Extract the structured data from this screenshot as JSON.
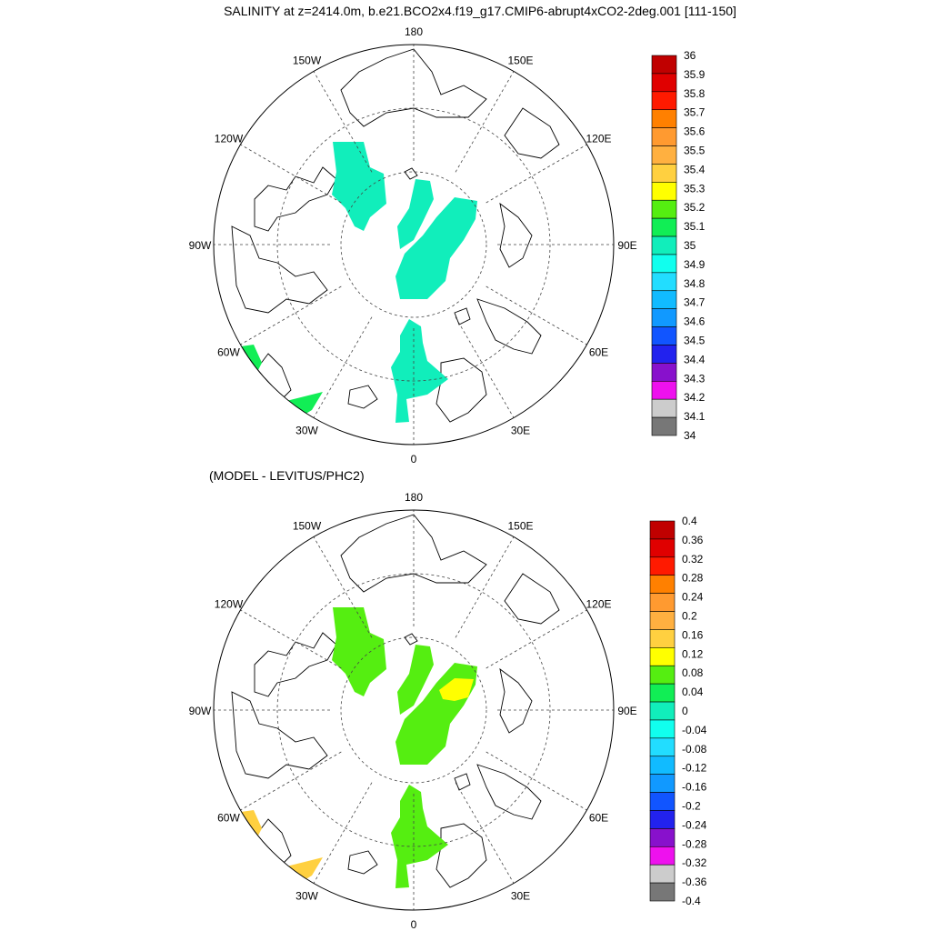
{
  "title": "SALINITY at z=2414.0m, b.e21.BCO2x4.f19_g17.CMIP6-abrupt4xCO2-2deg.001 [111-150]",
  "subtitle": "(MODEL - LEVITUS/PHC2)",
  "chart_data": [
    {
      "type": "heatmap",
      "projection": "north-polar-stereographic",
      "title": "SALINITY at z=2414.0m, b.e21.BCO2x4.f19_g17.CMIP6-abrupt4xCO2-2deg.001 [111-150]",
      "longitude_labels": [
        "180",
        "150E",
        "120E",
        "90E",
        "60E",
        "30E",
        "0",
        "30W",
        "60W",
        "90W",
        "120W",
        "150W"
      ],
      "colorbar_levels": [
        "36",
        "35.9",
        "35.8",
        "35.7",
        "35.6",
        "35.5",
        "35.4",
        "35.3",
        "35.2",
        "35.1",
        "35",
        "34.9",
        "34.8",
        "34.7",
        "34.6",
        "34.5",
        "34.4",
        "34.3",
        "34.2",
        "34.1",
        "34"
      ],
      "colorbar_colors": [
        "#c00000",
        "#e00000",
        "#ff1a00",
        "#ff8000",
        "#ff9a30",
        "#ffb040",
        "#ffd040",
        "#ffff00",
        "#55ee11",
        "#11ee55",
        "#11eebb",
        "#11ffee",
        "#22ddff",
        "#11bbff",
        "#1199ff",
        "#1155ff",
        "#2222ee",
        "#8811cc",
        "#ee11ee",
        "#cccccc",
        "#777777"
      ],
      "regions": [
        {
          "name": "canada-basin",
          "value": 34.95,
          "color": "#11eebb"
        },
        {
          "name": "makarov-basin",
          "value": 34.95,
          "color": "#11eebb"
        },
        {
          "name": "eurasian-basin",
          "value": 34.95,
          "color": "#11eebb"
        },
        {
          "name": "greenland-sea",
          "value": 34.95,
          "color": "#11eebb"
        },
        {
          "name": "labrador-sea",
          "value": 35.15,
          "color": "#11ee55"
        },
        {
          "name": "north-atlantic",
          "value": 35.15,
          "color": "#11ee55"
        }
      ]
    },
    {
      "type": "heatmap",
      "projection": "north-polar-stereographic",
      "title": "(MODEL - LEVITUS/PHC2)",
      "longitude_labels": [
        "180",
        "150E",
        "120E",
        "90E",
        "60E",
        "30E",
        "0",
        "30W",
        "60W",
        "90W",
        "120W",
        "150W"
      ],
      "colorbar_levels": [
        "0.4",
        "0.36",
        "0.32",
        "0.28",
        "0.24",
        "0.2",
        "0.16",
        "0.12",
        "0.08",
        "0.04",
        "0",
        "-0.04",
        "-0.08",
        "-0.12",
        "-0.16",
        "-0.2",
        "-0.24",
        "-0.28",
        "-0.32",
        "-0.36",
        "-0.4"
      ],
      "colorbar_colors": [
        "#c00000",
        "#e00000",
        "#ff1a00",
        "#ff8000",
        "#ff9a30",
        "#ffb040",
        "#ffd040",
        "#ffff00",
        "#55ee11",
        "#11ee55",
        "#11eebb",
        "#11ffee",
        "#22ddff",
        "#11bbff",
        "#1199ff",
        "#1155ff",
        "#2222ee",
        "#8811cc",
        "#ee11ee",
        "#cccccc",
        "#777777"
      ],
      "regions": [
        {
          "name": "canada-basin",
          "value": 0.06,
          "color": "#55ee11"
        },
        {
          "name": "makarov-basin",
          "value": 0.06,
          "color": "#55ee11"
        },
        {
          "name": "eurasian-basin",
          "value": 0.06,
          "color": "#55ee11"
        },
        {
          "name": "eurasian-basin-max",
          "value": 0.1,
          "color": "#ffff00"
        },
        {
          "name": "greenland-sea",
          "value": 0.06,
          "color": "#55ee11"
        },
        {
          "name": "labrador-sea",
          "value": 0.14,
          "color": "#ffd040"
        },
        {
          "name": "north-atlantic",
          "value": 0.14,
          "color": "#ffd040"
        }
      ]
    }
  ]
}
